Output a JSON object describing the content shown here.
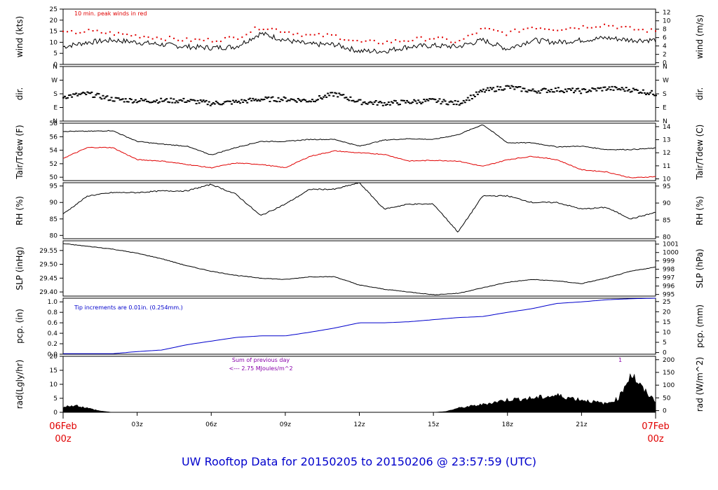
{
  "footer": "UW Rooftop Data for 20150205  to  20150206 @ 23:57:59  (UTC)",
  "colors": {
    "red": "#e00000",
    "blue": "#0000cc",
    "purple": "#8800aa",
    "axis": "#000000"
  },
  "x_axis": {
    "range_hours": [
      0,
      24
    ],
    "ticks": [
      {
        "h": 3,
        "label": "03z"
      },
      {
        "h": 6,
        "label": "06z"
      },
      {
        "h": 9,
        "label": "09z"
      },
      {
        "h": 12,
        "label": "12z"
      },
      {
        "h": 15,
        "label": "15z"
      },
      {
        "h": 18,
        "label": "18z"
      },
      {
        "h": 21,
        "label": "21z"
      }
    ],
    "start_date": "06Feb",
    "start_time": "00z",
    "end_date": "07Feb",
    "end_time": "00z"
  },
  "chart_data": [
    {
      "id": "wind",
      "type": "line",
      "left_label": "wind (kts)",
      "right_label": "wind (m/s)",
      "ylim": [
        0,
        25
      ],
      "left_ticks": [
        "0",
        "5",
        "10",
        "15",
        "20",
        "25"
      ],
      "right_ticks": [
        "0",
        "2",
        "4",
        "6",
        "8",
        "10",
        "12"
      ],
      "annotation": "10 min. peak winds in red",
      "hours": [
        0,
        1,
        2,
        3,
        4,
        5,
        6,
        7,
        8,
        9,
        10,
        11,
        12,
        13,
        14,
        15,
        16,
        17,
        18,
        19,
        20,
        21,
        22,
        23,
        24
      ],
      "series": [
        {
          "values": [
            8,
            10,
            11,
            10,
            9,
            8,
            7.5,
            8,
            14,
            11,
            9,
            9,
            6,
            6,
            8,
            8.5,
            8,
            11,
            7,
            11,
            10,
            11,
            12,
            11,
            11
          ],
          "color": "#000000"
        },
        {
          "values": [
            14,
            15,
            14,
            13,
            12,
            11,
            11,
            12,
            17,
            15,
            13,
            13,
            10,
            10,
            11,
            12,
            10,
            16,
            14,
            17,
            16,
            17,
            18,
            16,
            15
          ],
          "color": "#e00000",
          "style": "dots"
        }
      ]
    },
    {
      "id": "dir",
      "type": "scatter",
      "left_label": "dir.",
      "right_label": "dir.",
      "ylim": [
        0,
        4
      ],
      "left_ticks": [
        "N",
        "E",
        "S",
        "W",
        "N"
      ],
      "right_ticks": [
        "N",
        "E",
        "S",
        "W",
        "N"
      ],
      "hours": [
        0,
        1,
        2,
        3,
        4,
        5,
        6,
        7,
        8,
        9,
        10,
        11,
        12,
        13,
        14,
        15,
        16,
        17,
        18,
        19,
        20,
        21,
        22,
        23,
        24
      ],
      "series": [
        {
          "values": [
            1.8,
            2.0,
            1.6,
            1.5,
            1.5,
            1.5,
            1.3,
            1.4,
            1.6,
            1.6,
            1.5,
            2.0,
            1.4,
            1.3,
            1.4,
            1.5,
            1.3,
            2.2,
            2.5,
            2.2,
            2.3,
            2.2,
            2.4,
            2.3,
            2.0
          ],
          "color": "#000000"
        }
      ]
    },
    {
      "id": "temp",
      "type": "line",
      "left_label": "Tair/Tdew (F)",
      "right_label": "Tair/Tdew (C)",
      "ylim": [
        49.5,
        58
      ],
      "left_ticks": [
        "50",
        "52",
        "54",
        "56",
        "58"
      ],
      "right_ticks": [
        "10",
        "11",
        "12",
        "13",
        "14"
      ],
      "hours": [
        0,
        1,
        2,
        3,
        4,
        5,
        6,
        7,
        8,
        9,
        10,
        11,
        12,
        13,
        14,
        15,
        16,
        17,
        18,
        19,
        20,
        21,
        22,
        23,
        24
      ],
      "series": [
        {
          "name": "Tair",
          "values": [
            56.8,
            56.8,
            56.9,
            55.3,
            54.9,
            54.6,
            53.3,
            54.4,
            55.3,
            55.3,
            55.6,
            55.6,
            54.6,
            55.5,
            55.7,
            55.6,
            56.3,
            57.8,
            55.1,
            55.1,
            54.5,
            54.6,
            54.1,
            54.1,
            54.3
          ],
          "color": "#000000"
        },
        {
          "name": "Tdew",
          "values": [
            52.8,
            54.4,
            54.4,
            52.6,
            52.4,
            51.9,
            51.4,
            52.1,
            51.9,
            51.4,
            53.1,
            53.9,
            53.6,
            53.4,
            52.4,
            52.5,
            52.4,
            51.6,
            52.6,
            53.1,
            52.6,
            51.1,
            50.8,
            49.9,
            50.1
          ],
          "color": "#e00000"
        }
      ]
    },
    {
      "id": "rh",
      "type": "line",
      "left_label": "RH (%)",
      "right_label": "RH (%)",
      "ylim": [
        79,
        96
      ],
      "left_ticks": [
        "80",
        "85",
        "90",
        "95"
      ],
      "right_ticks": [
        "80",
        "85",
        "90",
        "95"
      ],
      "hours": [
        0,
        1,
        2,
        3,
        4,
        5,
        6,
        7,
        8,
        9,
        10,
        11,
        12,
        13,
        14,
        15,
        16,
        17,
        18,
        19,
        20,
        21,
        22,
        23,
        24
      ],
      "series": [
        {
          "values": [
            86.5,
            92,
            93,
            93,
            93.5,
            93.5,
            95.5,
            92.5,
            86,
            89.5,
            94,
            94,
            96,
            88,
            89.5,
            89.5,
            81,
            92,
            92,
            90,
            90,
            88,
            88.5,
            85,
            87
          ],
          "color": "#000000"
        }
      ]
    },
    {
      "id": "slp",
      "type": "line",
      "left_label": "SLP (inHg)",
      "right_label": "SLP (hPa)",
      "ylim": [
        29.385,
        29.585
      ],
      "left_ticks": [
        "29.40",
        "29.45",
        "29.50",
        "29.55"
      ],
      "right_ticks": [
        "995",
        "996",
        "997",
        "998",
        "999",
        "1000",
        "1001"
      ],
      "hours": [
        0,
        1,
        2,
        3,
        4,
        5,
        6,
        7,
        8,
        9,
        10,
        11,
        12,
        13,
        14,
        15,
        16,
        17,
        18,
        19,
        20,
        21,
        22,
        23,
        24
      ],
      "series": [
        {
          "values": [
            29.575,
            29.565,
            29.555,
            29.54,
            29.52,
            29.495,
            29.475,
            29.46,
            29.45,
            29.445,
            29.455,
            29.455,
            29.425,
            29.41,
            29.4,
            29.39,
            29.395,
            29.415,
            29.435,
            29.445,
            29.44,
            29.43,
            29.45,
            29.475,
            29.49
          ],
          "color": "#000000"
        }
      ]
    },
    {
      "id": "pcp",
      "type": "line",
      "left_label": "pcp. (in)",
      "right_label": "pcp. (mm)",
      "ylim": [
        0,
        1.07
      ],
      "left_ticks": [
        "0.0",
        "0.2",
        "0.4",
        "0.6",
        "0.8",
        "1.0"
      ],
      "right_ticks": [
        "0",
        "5",
        "10",
        "15",
        "20",
        "25"
      ],
      "annotation": "Tip increments are 0.01in. (0.254mm.)",
      "hours": [
        0,
        1,
        2,
        3,
        4,
        5,
        6,
        7,
        8,
        9,
        10,
        11,
        12,
        13,
        14,
        15,
        16,
        17,
        18,
        19,
        20,
        21,
        22,
        23,
        24
      ],
      "series": [
        {
          "values": [
            0.01,
            0.01,
            0.01,
            0.05,
            0.08,
            0.18,
            0.25,
            0.32,
            0.35,
            0.35,
            0.42,
            0.5,
            0.6,
            0.6,
            0.62,
            0.66,
            0.7,
            0.72,
            0.8,
            0.87,
            0.97,
            1.0,
            1.04,
            1.06,
            1.07
          ],
          "color": "#0000cc"
        }
      ]
    },
    {
      "id": "rad",
      "type": "area",
      "left_label": "rad(Lgly/hr)",
      "right_label": "rad (W/m^2)",
      "ylim": [
        0,
        20
      ],
      "left_ticks": [
        "0",
        "5",
        "10",
        "15",
        "20"
      ],
      "right_ticks": [
        "0",
        "50",
        "100",
        "150",
        "200"
      ],
      "annotation": [
        "Sum of previous day",
        "<--- 2.75 MJoules/m^2"
      ],
      "marker": "1",
      "hours": [
        0,
        0.5,
        1,
        1.5,
        2,
        3,
        15,
        15.5,
        16,
        17,
        18,
        19,
        20,
        21,
        22,
        22.5,
        23,
        23.5,
        24
      ],
      "series": [
        {
          "values": [
            2,
            2.5,
            1.5,
            0.5,
            0,
            0,
            0,
            0.3,
            1.5,
            2.8,
            4.5,
            5,
            6,
            4.5,
            3,
            5,
            14,
            8,
            4
          ],
          "color": "#000000"
        }
      ]
    }
  ]
}
